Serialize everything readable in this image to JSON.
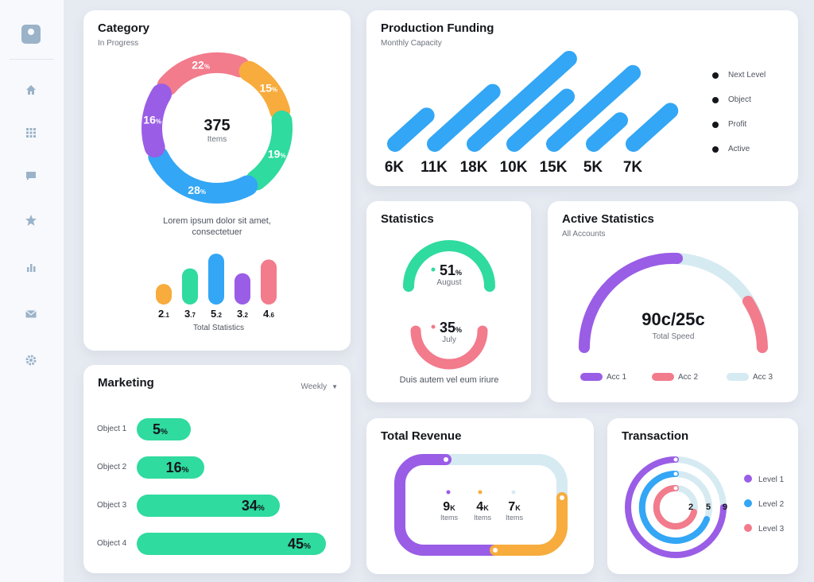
{
  "colors": {
    "purple": "#9a5de6",
    "pink": "#f27b8c",
    "orange": "#f7ac3d",
    "green": "#2fdb9f",
    "blue": "#33a6f5",
    "light": "#d6eaf2"
  },
  "sidebar": {
    "items": [
      {
        "icon": "home-icon"
      },
      {
        "icon": "grid-icon"
      },
      {
        "icon": "message-icon"
      },
      {
        "icon": "star-icon"
      },
      {
        "icon": "bar-chart-icon"
      },
      {
        "icon": "mail-icon"
      },
      {
        "icon": "settings-icon"
      }
    ]
  },
  "category": {
    "title": "Category",
    "subtitle": "In Progress",
    "center_value": "375",
    "center_label": "Items",
    "description_line1": "Lorem ipsum dolor sit amet,",
    "description_line2": "consectetuer",
    "bars_caption": "Total Statistics"
  },
  "production": {
    "title": "Production Funding",
    "subtitle": "Monthly Capacity",
    "legend": [
      "Next Level",
      "Object",
      "Profit",
      "Active"
    ]
  },
  "statistics": {
    "title": "Statistics",
    "top_value": "51",
    "top_month": "August",
    "bottom_value": "35",
    "bottom_month": "July",
    "caption": "Duis autem vel eum iriure"
  },
  "active_statistics": {
    "title": "Active Statistics",
    "subtitle": "All Accounts",
    "center_value": "90c/25c",
    "center_label": "Total Speed",
    "legend": [
      "Acc 1",
      "Acc 2",
      "Acc 3"
    ]
  },
  "marketing": {
    "title": "Marketing",
    "period": "Weekly",
    "rows": [
      {
        "label": "Object 1",
        "value": 5
      },
      {
        "label": "Object 2",
        "value": 16
      },
      {
        "label": "Object 3",
        "value": 34
      },
      {
        "label": "Object 4",
        "value": 45
      }
    ]
  },
  "total_revenue": {
    "title": "Total Revenue",
    "stats": [
      {
        "value": "9",
        "unit": "K",
        "label": "Items"
      },
      {
        "value": "4",
        "unit": "K",
        "label": "Items"
      },
      {
        "value": "7",
        "unit": "K",
        "label": "Items"
      }
    ]
  },
  "transaction": {
    "title": "Transaction",
    "ring_values": [
      "2",
      "5",
      "9"
    ],
    "legend": [
      "Level 1",
      "Level 2",
      "Level 3"
    ]
  },
  "chart_data": [
    {
      "type": "pie",
      "title": "Category",
      "categories": [
        "22%",
        "15%",
        "19%",
        "28%",
        "16%"
      ],
      "values": [
        22,
        15,
        19,
        28,
        16
      ],
      "colors": [
        "#f27b8c",
        "#f7ac3d",
        "#2fdb9f",
        "#33a6f5",
        "#9a5de6"
      ]
    },
    {
      "type": "bar",
      "title": "Total Statistics",
      "categories": [
        "2.1",
        "3.7",
        "5.2",
        "3.2",
        "4.6"
      ],
      "values": [
        2.1,
        3.7,
        5.2,
        3.2,
        4.6
      ],
      "labels": [
        [
          "2",
          ".1"
        ],
        [
          "3",
          ".7"
        ],
        [
          "5",
          ".2"
        ],
        [
          "3",
          ".2"
        ],
        [
          "4",
          ".6"
        ]
      ],
      "colors": [
        "#f7ac3d",
        "#2fdb9f",
        "#33a6f5",
        "#9a5de6",
        "#f27b8c"
      ]
    },
    {
      "type": "bar",
      "title": "Production Funding",
      "categories": [
        "6K",
        "11K",
        "18K",
        "10K",
        "15K",
        "5K",
        "7K"
      ],
      "values": [
        6,
        11,
        18,
        10,
        15,
        5,
        7
      ]
    },
    {
      "type": "bar",
      "title": "Marketing",
      "categories": [
        "Object 1",
        "Object 2",
        "Object 3",
        "Object 4"
      ],
      "values": [
        5,
        16,
        34,
        45
      ]
    }
  ]
}
